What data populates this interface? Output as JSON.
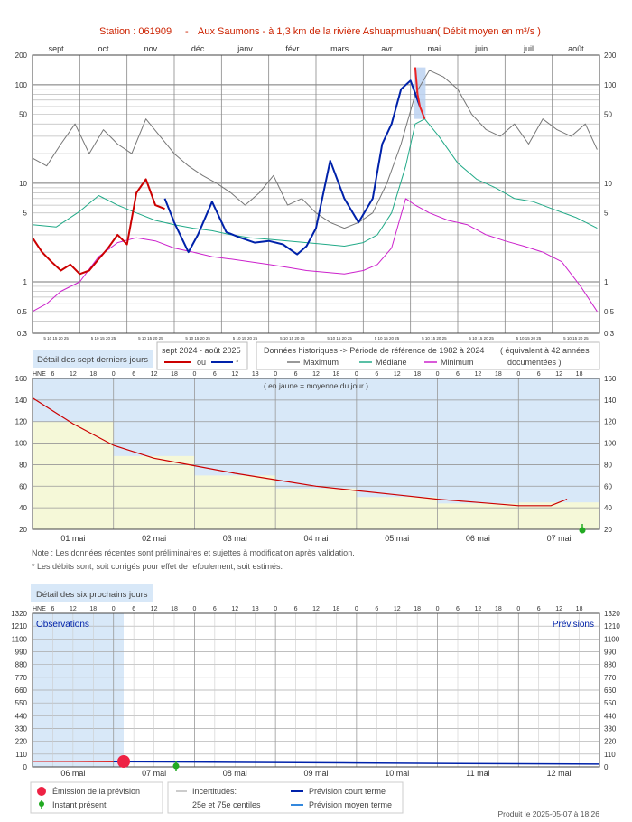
{
  "header": {
    "station": "Station : 061909",
    "separator": "-",
    "river": "Aux Saumons - à 1,3 km de la rivière Ashuapmushuan",
    "unit": "( Débit moyen en m³/s )"
  },
  "colors": {
    "title": "#cc2200",
    "red_series": "#cc0000",
    "blue_series": "#0022aa",
    "maximum": "#777777",
    "mediane": "#22aa88",
    "minimum": "#cc22cc",
    "panel_blue": "#d8e8f8",
    "daily_yellow": "#f5f8d8",
    "forecast_medium": "#3388dd"
  },
  "chart1": {
    "months": [
      "sept",
      "oct",
      "nov",
      "déc",
      "janv",
      "févr",
      "mars",
      "avr",
      "mai",
      "juin",
      "juil",
      "août"
    ],
    "y_ticks": [
      "200",
      "100",
      "50",
      "10",
      "5",
      "1",
      "0.5",
      "0.3"
    ],
    "day_ticks": "5 10 15 20 25",
    "scale": "log",
    "ylim": [
      0.3,
      200
    ]
  },
  "legend1": {
    "detail_label": "Détail des sept derniers jours",
    "period_label": "sept 2024 - août 2025",
    "or_label": "ou",
    "star_label": "*",
    "hist_label": "Données historiques -> Période de référence  de 1982 à 2024",
    "equiv_label": "( équivalent à 42 années",
    "documented_label": "documentées )",
    "maximum_label": "Maximum",
    "mediane_label": "Médiane",
    "minimum_label": "Minimum"
  },
  "chart2": {
    "hne": "HNE",
    "hours": [
      "6",
      "12",
      "18",
      "0",
      "6",
      "12",
      "18",
      "0",
      "6",
      "12",
      "18",
      "0",
      "6",
      "12",
      "18",
      "0",
      "6",
      "12",
      "18",
      "0",
      "6",
      "12",
      "18",
      "0",
      "6",
      "12",
      "18"
    ],
    "y_ticks": [
      "160",
      "140",
      "120",
      "100",
      "80",
      "60",
      "40",
      "20"
    ],
    "note": "( en jaune = moyenne du jour )",
    "days": [
      "01 mai",
      "02 mai",
      "03 mai",
      "04 mai",
      "05 mai",
      "06 mai",
      "07 mai"
    ],
    "ylim": [
      20,
      160
    ],
    "daily_means": [
      120,
      88,
      70,
      58,
      50,
      44,
      45
    ]
  },
  "notes": {
    "line1": "Note : Les données récentes sont préliminaires et sujettes à modification après validation.",
    "line2": "* Les débits sont, soit corrigés pour effet de refoulement, soit estimés."
  },
  "chart3": {
    "detail_label": "Détail des six prochains jours",
    "hne": "HNE",
    "hours": [
      "6",
      "12",
      "18",
      "0",
      "6",
      "12",
      "18",
      "0",
      "6",
      "12",
      "18",
      "0",
      "6",
      "12",
      "18",
      "0",
      "6",
      "12",
      "18",
      "0",
      "6",
      "12",
      "18",
      "0",
      "6",
      "12",
      "18"
    ],
    "y_ticks": [
      "1320",
      "1210",
      "1100",
      "990",
      "880",
      "770",
      "660",
      "550",
      "440",
      "330",
      "220",
      "110",
      "0"
    ],
    "observations_label": "Observations",
    "previsions_label": "Prévisions",
    "days": [
      "06 mai",
      "07 mai",
      "08 mai",
      "09 mai",
      "10 mai",
      "11 mai",
      "12 mai"
    ],
    "ylim": [
      0,
      1320
    ]
  },
  "legend3": {
    "emission": "Émission de la prévision",
    "instant": "Instant présent",
    "uncert1": "Incertitudes:",
    "uncert2": "25e et 75e centiles",
    "short_term": "Prévision court terme",
    "medium_term": "Prévision moyen terme"
  },
  "footer": {
    "produced": "Produit le 2025-05-07 à 18:26"
  },
  "chart_data": [
    {
      "type": "line",
      "title": "Station : 061909 - Aux Saumons - à 1,3 km de la rivière Ashuapmushuan ( Débit moyen en m³/s )",
      "scale": "log",
      "ylim": [
        0.3,
        200
      ],
      "x_months": [
        "sept",
        "oct",
        "nov",
        "déc",
        "janv",
        "févr",
        "mars",
        "avr",
        "mai",
        "juin",
        "juil",
        "août"
      ],
      "series": [
        {
          "name": "Maximum",
          "x_month": [
            0,
            0.3,
            0.6,
            0.9,
            1.2,
            1.5,
            1.8,
            2.1,
            2.4,
            2.7,
            3.0,
            3.3,
            3.6,
            3.9,
            4.2,
            4.5,
            4.8,
            5.1,
            5.4,
            5.7,
            6.0,
            6.3,
            6.6,
            6.9,
            7.2,
            7.5,
            7.8,
            8.1,
            8.4,
            8.7,
            9.0,
            9.3,
            9.6,
            9.9,
            10.2,
            10.5,
            10.8,
            11.1,
            11.4,
            11.7,
            11.95
          ],
          "values": [
            18,
            15,
            25,
            40,
            20,
            35,
            25,
            20,
            45,
            30,
            20,
            15,
            12,
            10,
            8,
            6,
            8,
            12,
            6,
            7,
            5,
            4,
            3.5,
            4,
            5,
            10,
            25,
            80,
            140,
            120,
            90,
            50,
            35,
            30,
            40,
            25,
            45,
            35,
            30,
            40,
            22
          ]
        },
        {
          "name": "Médiane",
          "x_month": [
            0,
            0.5,
            1.0,
            1.4,
            1.8,
            2.2,
            2.6,
            3.0,
            3.4,
            3.8,
            4.2,
            4.6,
            5.0,
            5.4,
            5.8,
            6.2,
            6.6,
            7.0,
            7.3,
            7.6,
            7.9,
            8.1,
            8.3,
            8.6,
            9.0,
            9.4,
            9.8,
            10.2,
            10.6,
            11.0,
            11.5,
            11.95
          ],
          "values": [
            3.8,
            3.6,
            5.2,
            7.5,
            6,
            5,
            4.2,
            3.8,
            3.5,
            3.3,
            3.0,
            2.8,
            2.7,
            2.6,
            2.5,
            2.4,
            2.3,
            2.5,
            3,
            5,
            15,
            40,
            45,
            30,
            16,
            11,
            9,
            7,
            6.5,
            5.5,
            4.5,
            3.5
          ]
        },
        {
          "name": "Minimum",
          "x_month": [
            0,
            0.3,
            0.6,
            1.0,
            1.4,
            1.8,
            2.2,
            2.6,
            3.0,
            3.4,
            3.8,
            4.2,
            4.6,
            5.0,
            5.4,
            5.8,
            6.2,
            6.6,
            7.0,
            7.3,
            7.6,
            7.9,
            8.1,
            8.4,
            8.8,
            9.2,
            9.6,
            10.0,
            10.4,
            10.8,
            11.2,
            11.6,
            11.95
          ],
          "values": [
            0.5,
            0.6,
            0.8,
            1.0,
            1.8,
            2.5,
            2.8,
            2.6,
            2.2,
            2.0,
            1.8,
            1.7,
            1.6,
            1.5,
            1.4,
            1.3,
            1.25,
            1.2,
            1.3,
            1.5,
            2.2,
            7,
            6,
            5,
            4.2,
            3.8,
            3,
            2.6,
            2.3,
            2.0,
            1.6,
            0.9,
            0.5
          ]
        },
        {
          "name": "sept 2024 - août 2025",
          "x_month": [
            0,
            0.2,
            0.4,
            0.6,
            0.8,
            1.0,
            1.2,
            1.4,
            1.6,
            1.8,
            2.0,
            2.2,
            2.4,
            2.6,
            2.8
          ],
          "values": [
            2.8,
            2.0,
            1.6,
            1.3,
            1.5,
            1.2,
            1.3,
            1.7,
            2.2,
            3.0,
            2.4,
            8,
            11,
            6,
            5.5
          ]
        },
        {
          "name": "*",
          "x_month": [
            2.8,
            3.0,
            3.3,
            3.5,
            3.8,
            4.1,
            4.4,
            4.7,
            5.0,
            5.3,
            5.6,
            5.8,
            6.0,
            6.3,
            6.6,
            6.9,
            7.2,
            7.4,
            7.6,
            7.8,
            8.0,
            8.2
          ],
          "values": [
            7,
            4,
            2,
            3,
            6.5,
            3.2,
            2.8,
            2.5,
            2.6,
            2.4,
            1.9,
            2.3,
            3.5,
            17,
            7,
            4,
            7,
            25,
            40,
            90,
            110,
            60
          ]
        },
        {
          "name": "sept 2024 - août 2025 (7 derniers jours)",
          "x_month": [
            8.1,
            8.15,
            8.2,
            8.3
          ],
          "values": [
            150,
            80,
            60,
            45
          ]
        }
      ]
    },
    {
      "type": "line",
      "title": "Détail des sept derniers jours",
      "ylim": [
        20,
        160
      ],
      "x_days": [
        "01 mai",
        "02 mai",
        "03 mai",
        "04 mai",
        "05 mai",
        "06 mai",
        "07 mai"
      ],
      "series": [
        {
          "name": "",
          "x_day": [
            0,
            0.5,
            1.0,
            1.5,
            2.0,
            2.5,
            3.0,
            3.5,
            4.0,
            4.5,
            5.0,
            5.5,
            6.0,
            6.4,
            6.6
          ],
          "values": [
            142,
            118,
            98,
            86,
            79,
            72,
            66,
            60,
            56,
            52,
            48,
            45,
            42,
            42,
            48
          ]
        }
      ],
      "daily_means": [
        120,
        88,
        70,
        58,
        50,
        44,
        45
      ]
    },
    {
      "type": "line",
      "title": "Détail des six prochains jours",
      "ylim": [
        0,
        1320
      ],
      "x_days": [
        "06 mai",
        "07 mai",
        "08 mai",
        "09 mai",
        "10 mai",
        "11 mai",
        "12 mai"
      ],
      "series": [
        {
          "name": "Observations",
          "x_day": [
            0,
            0.5,
            1.0
          ],
          "values": [
            48,
            47,
            45
          ]
        },
        {
          "name": "Prévision court terme",
          "x_day": [
            1.0,
            2.0,
            3.0,
            4.0,
            5.0,
            6.0,
            7.0
          ],
          "values": [
            45,
            42,
            38,
            34,
            30,
            27,
            24
          ]
        }
      ]
    }
  ]
}
